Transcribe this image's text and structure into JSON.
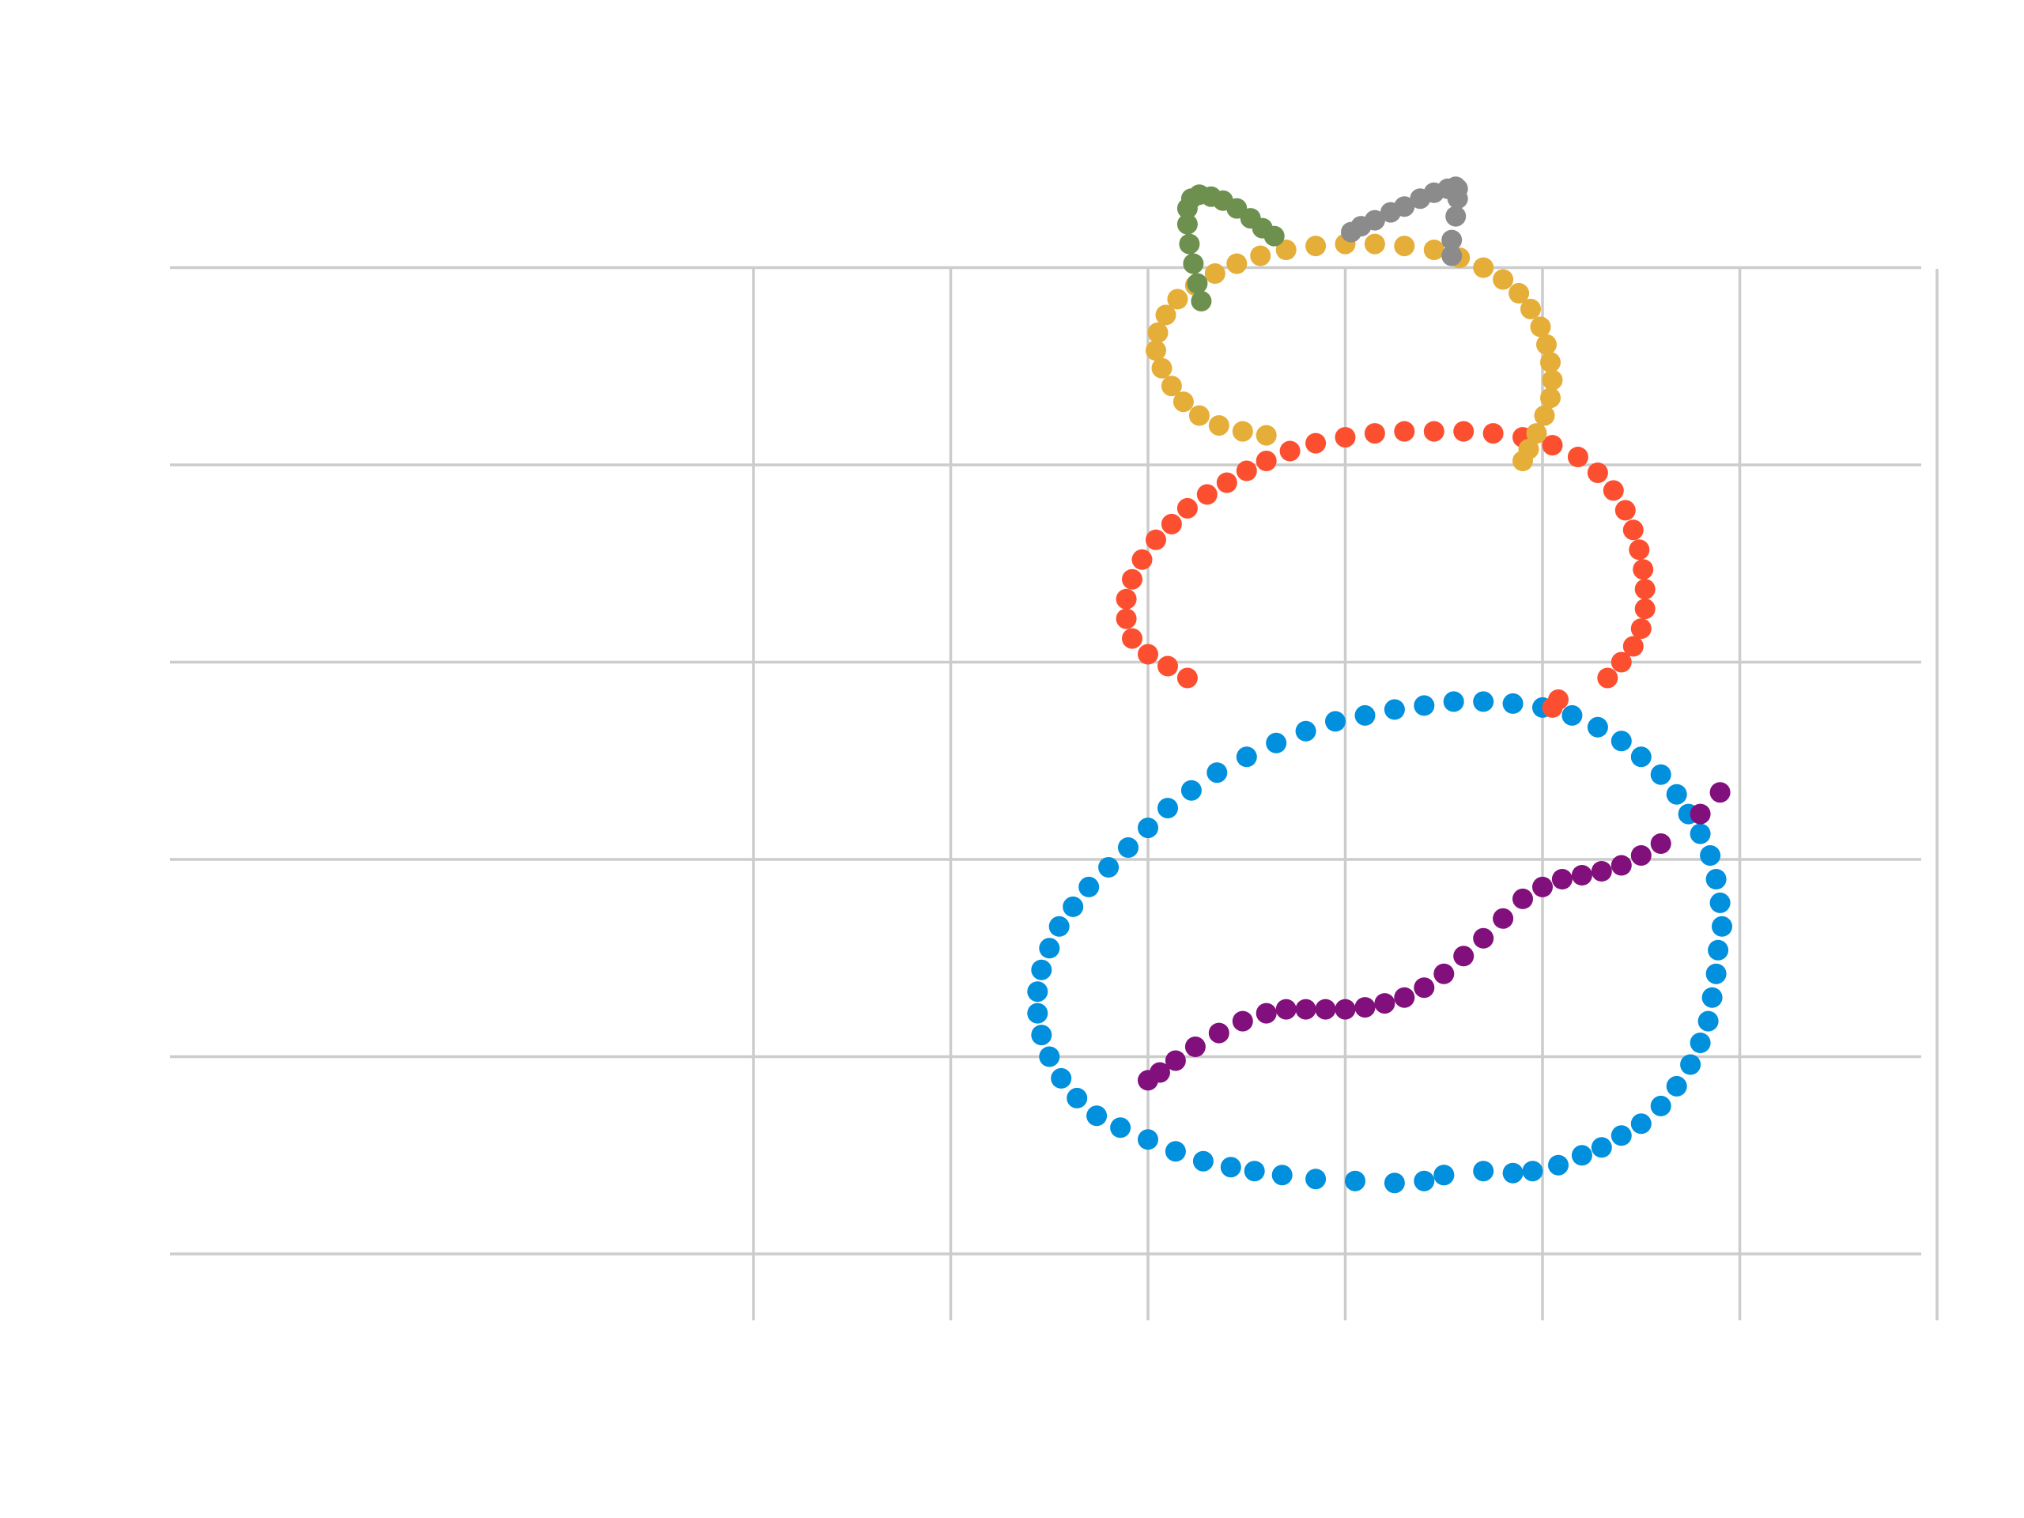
{
  "chart_data": {
    "type": "scatter",
    "title": "",
    "xlabel": "",
    "ylabel": "",
    "xlim": [
      -25,
      64
    ],
    "ylim": [
      -20,
      34
    ],
    "xticks": [
      -20,
      -10,
      0,
      10,
      20,
      30,
      40,
      50,
      60
    ],
    "yticks": [
      -20,
      -10,
      0,
      10,
      20,
      30
    ],
    "grid": true,
    "legend": "none",
    "series": [
      {
        "color": "#0090dd",
        "points": [
          [
            15.0,
            -16.0
          ],
          [
            17.0,
            -15.8
          ],
          [
            18.5,
            -15.9
          ],
          [
            19.5,
            -15.8
          ],
          [
            20.8,
            -15.5
          ],
          [
            22.0,
            -15.0
          ],
          [
            23.0,
            -14.6
          ],
          [
            24.0,
            -14.0
          ],
          [
            25.0,
            -13.4
          ],
          [
            26.0,
            -12.5
          ],
          [
            26.8,
            -11.5
          ],
          [
            27.5,
            -10.4
          ],
          [
            28.0,
            -9.3
          ],
          [
            28.4,
            -8.2
          ],
          [
            28.6,
            -7.0
          ],
          [
            28.8,
            -5.8
          ],
          [
            28.9,
            -4.6
          ],
          [
            29.1,
            -3.4
          ],
          [
            29.0,
            -2.2
          ],
          [
            28.8,
            -1.0
          ],
          [
            28.5,
            0.2
          ],
          [
            28.0,
            1.3
          ],
          [
            27.4,
            2.3
          ],
          [
            26.8,
            3.3
          ],
          [
            26.0,
            4.3
          ],
          [
            25.0,
            5.2
          ],
          [
            24.0,
            6.0
          ],
          [
            22.8,
            6.7
          ],
          [
            21.5,
            7.3
          ],
          [
            20.0,
            7.7
          ],
          [
            18.5,
            7.9
          ],
          [
            17.0,
            8.0
          ],
          [
            15.5,
            8.0
          ],
          [
            14.0,
            7.8
          ],
          [
            12.5,
            7.6
          ],
          [
            11.0,
            7.3
          ],
          [
            9.5,
            7.0
          ],
          [
            8.0,
            6.5
          ],
          [
            6.5,
            5.9
          ],
          [
            5.0,
            5.2
          ],
          [
            3.5,
            4.4
          ],
          [
            2.2,
            3.5
          ],
          [
            1.0,
            2.6
          ],
          [
            0.0,
            1.6
          ],
          [
            -1.0,
            0.6
          ],
          [
            -2.0,
            -0.4
          ],
          [
            -3.0,
            -1.4
          ],
          [
            -3.8,
            -2.4
          ],
          [
            -4.5,
            -3.4
          ],
          [
            -5.0,
            -4.5
          ],
          [
            -5.4,
            -5.6
          ],
          [
            -5.6,
            -6.7
          ],
          [
            -5.6,
            -7.8
          ],
          [
            -5.4,
            -8.9
          ],
          [
            -5.0,
            -10.0
          ],
          [
            -4.4,
            -11.1
          ],
          [
            -3.6,
            -12.1
          ],
          [
            -2.6,
            -13.0
          ],
          [
            -1.4,
            -13.6
          ],
          [
            0.0,
            -14.2
          ],
          [
            1.4,
            -14.8
          ],
          [
            2.8,
            -15.3
          ],
          [
            4.2,
            -15.6
          ],
          [
            5.4,
            -15.8
          ],
          [
            6.8,
            -16.0
          ],
          [
            8.5,
            -16.2
          ],
          [
            10.5,
            -16.3
          ],
          [
            12.5,
            -16.4
          ],
          [
            14.0,
            -16.3
          ],
          [
            15.0,
            -16.0
          ]
        ]
      },
      {
        "color": "#fc4f30",
        "points": [
          [
            2.0,
            9.2
          ],
          [
            1.0,
            9.8
          ],
          [
            0.0,
            10.4
          ],
          [
            -0.8,
            11.2
          ],
          [
            -1.1,
            12.2
          ],
          [
            -1.1,
            13.2
          ],
          [
            -0.8,
            14.2
          ],
          [
            -0.3,
            15.2
          ],
          [
            0.4,
            16.2
          ],
          [
            1.2,
            17.0
          ],
          [
            2.0,
            17.8
          ],
          [
            3.0,
            18.5
          ],
          [
            4.0,
            19.1
          ],
          [
            5.0,
            19.7
          ],
          [
            6.0,
            20.2
          ],
          [
            7.2,
            20.7
          ],
          [
            8.5,
            21.1
          ],
          [
            10.0,
            21.4
          ],
          [
            11.5,
            21.6
          ],
          [
            13.0,
            21.7
          ],
          [
            14.5,
            21.7
          ],
          [
            16.0,
            21.7
          ],
          [
            17.5,
            21.6
          ],
          [
            19.0,
            21.4
          ],
          [
            20.5,
            21.0
          ],
          [
            21.8,
            20.4
          ],
          [
            22.8,
            19.6
          ],
          [
            23.6,
            18.7
          ],
          [
            24.2,
            17.7
          ],
          [
            24.6,
            16.7
          ],
          [
            24.9,
            15.7
          ],
          [
            25.1,
            14.7
          ],
          [
            25.2,
            13.7
          ],
          [
            25.2,
            12.7
          ],
          [
            25.0,
            11.7
          ],
          [
            24.6,
            10.8
          ],
          [
            24.0,
            10.0
          ],
          [
            23.3,
            9.2
          ],
          [
            20.8,
            8.1
          ],
          [
            20.5,
            7.7
          ]
        ]
      },
      {
        "color": "#e5ae38",
        "points": [
          [
            6.0,
            21.5
          ],
          [
            4.8,
            21.7
          ],
          [
            3.6,
            22.0
          ],
          [
            2.6,
            22.5
          ],
          [
            1.8,
            23.2
          ],
          [
            1.2,
            24.0
          ],
          [
            0.7,
            24.9
          ],
          [
            0.4,
            25.8
          ],
          [
            0.5,
            26.7
          ],
          [
            0.9,
            27.6
          ],
          [
            1.5,
            28.4
          ],
          [
            2.4,
            29.1
          ],
          [
            3.4,
            29.7
          ],
          [
            4.5,
            30.2
          ],
          [
            5.7,
            30.6
          ],
          [
            7.0,
            30.9
          ],
          [
            8.5,
            31.1
          ],
          [
            10.0,
            31.2
          ],
          [
            11.5,
            31.2
          ],
          [
            13.0,
            31.1
          ],
          [
            14.5,
            30.9
          ],
          [
            15.8,
            30.5
          ],
          [
            17.0,
            30.0
          ],
          [
            18.0,
            29.4
          ],
          [
            18.8,
            28.7
          ],
          [
            19.4,
            27.9
          ],
          [
            19.9,
            27.0
          ],
          [
            20.2,
            26.1
          ],
          [
            20.4,
            25.2
          ],
          [
            20.5,
            24.3
          ],
          [
            20.4,
            23.4
          ],
          [
            20.1,
            22.5
          ],
          [
            19.7,
            21.6
          ],
          [
            19.3,
            20.8
          ],
          [
            19.0,
            20.2
          ]
        ]
      },
      {
        "color": "#6d904f",
        "points": [
          [
            2.7,
            28.3
          ],
          [
            2.5,
            29.2
          ],
          [
            2.3,
            30.2
          ],
          [
            2.1,
            31.2
          ],
          [
            2.0,
            32.2
          ],
          [
            2.0,
            33.0
          ],
          [
            2.2,
            33.5
          ],
          [
            2.6,
            33.7
          ],
          [
            3.2,
            33.6
          ],
          [
            3.8,
            33.4
          ],
          [
            4.5,
            33.0
          ],
          [
            5.2,
            32.5
          ],
          [
            5.8,
            32.0
          ],
          [
            6.4,
            31.6
          ]
        ]
      },
      {
        "color": "#8b8b8b",
        "points": [
          [
            10.3,
            31.8
          ],
          [
            10.8,
            32.1
          ],
          [
            11.5,
            32.4
          ],
          [
            12.3,
            32.8
          ],
          [
            13.0,
            33.1
          ],
          [
            13.8,
            33.5
          ],
          [
            14.5,
            33.8
          ],
          [
            15.2,
            34.0
          ],
          [
            15.6,
            34.1
          ],
          [
            15.7,
            34.0
          ],
          [
            15.7,
            33.5
          ],
          [
            15.6,
            32.6
          ],
          [
            15.4,
            31.4
          ],
          [
            15.4,
            30.6
          ]
        ]
      },
      {
        "color": "#810f7c",
        "points": [
          [
            0.0,
            -11.2
          ],
          [
            0.6,
            -10.8
          ],
          [
            1.4,
            -10.2
          ],
          [
            2.4,
            -9.5
          ],
          [
            3.6,
            -8.8
          ],
          [
            4.8,
            -8.2
          ],
          [
            6.0,
            -7.8
          ],
          [
            7.0,
            -7.6
          ],
          [
            8.0,
            -7.6
          ],
          [
            9.0,
            -7.6
          ],
          [
            10.0,
            -7.6
          ],
          [
            11.0,
            -7.5
          ],
          [
            12.0,
            -7.3
          ],
          [
            13.0,
            -7.0
          ],
          [
            14.0,
            -6.5
          ],
          [
            15.0,
            -5.8
          ],
          [
            16.0,
            -4.9
          ],
          [
            17.0,
            -4.0
          ],
          [
            18.0,
            -3.0
          ],
          [
            19.0,
            -2.0
          ],
          [
            20.0,
            -1.4
          ],
          [
            21.0,
            -1.0
          ],
          [
            22.0,
            -0.8
          ],
          [
            23.0,
            -0.6
          ],
          [
            24.0,
            -0.3
          ],
          [
            25.0,
            0.2
          ],
          [
            26.0,
            0.8
          ],
          [
            28.0,
            2.3
          ],
          [
            29.0,
            3.4
          ]
        ]
      }
    ]
  }
}
